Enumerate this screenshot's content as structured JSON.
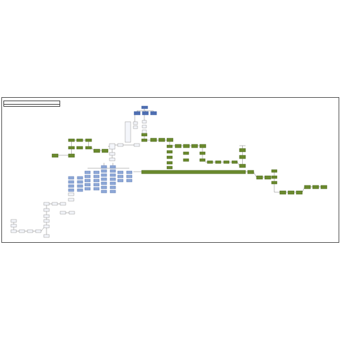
{
  "title": {
    "line1": "",
    "line2": ""
  },
  "colors": {
    "green": "#6b8a2f",
    "green_border": "#3f5a14",
    "blue": "#8fa9d8",
    "blue_border": "#4a6aa8",
    "dark_blue": "#4f6fb2",
    "white_box": "#f4f6fb",
    "white_border": "#7a7a7a",
    "line": "#222222"
  },
  "labels": {
    "top_header": "",
    "left_column": "",
    "bottom_left": "",
    "left_stack": "",
    "right_end": ""
  },
  "node_groups": {
    "green_nodes": 58,
    "blue_nodes": 40,
    "white_nodes": 30
  }
}
